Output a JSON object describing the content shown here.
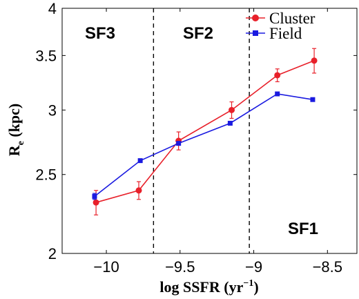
{
  "chart_data": {
    "type": "line",
    "xlabel": "log SSFR (yr",
    "xlabel_sup": "−1",
    "xlabel_close": ")",
    "ylabel": "R",
    "ylabel_sub": "e",
    "ylabel_unit": " (kpc)",
    "xlim": [
      -10.3,
      -8.3
    ],
    "ylim": [
      2,
      4
    ],
    "y_scale": "log",
    "x_ticks": [
      -10,
      -9.5,
      -9,
      -8.5
    ],
    "x_tick_labels": [
      "−10",
      "−9.5",
      "−9",
      "−8.5"
    ],
    "y_ticks": [
      2,
      2.5,
      3,
      3.5,
      4
    ],
    "y_tick_labels": [
      "2",
      "2.5",
      "3",
      "3.5",
      "4"
    ],
    "grid": false,
    "legend_position": "top-right",
    "series": [
      {
        "name": "Cluster",
        "color": "#e8202a",
        "marker": "circle",
        "x": [
          -10.07,
          -9.78,
          -9.51,
          -9.15,
          -8.84,
          -8.59
        ],
        "y": [
          2.31,
          2.39,
          2.75,
          3.0,
          3.31,
          3.45
        ],
        "err": [
          0.08,
          0.06,
          0.07,
          0.07,
          0.06,
          0.12
        ]
      },
      {
        "name": "Field",
        "color": "#1a1ae0",
        "marker": "square",
        "x": [
          -10.08,
          -9.77,
          -9.51,
          -9.16,
          -8.84,
          -8.6
        ],
        "y": [
          2.35,
          2.6,
          2.73,
          2.89,
          3.14,
          3.09
        ],
        "err": [
          0.02,
          0.01,
          0.01,
          0.01,
          0.01,
          0.01
        ]
      }
    ],
    "dividers": [
      -9.68,
      -9.03
    ],
    "regions": [
      "SF3",
      "SF2",
      "SF1"
    ]
  }
}
